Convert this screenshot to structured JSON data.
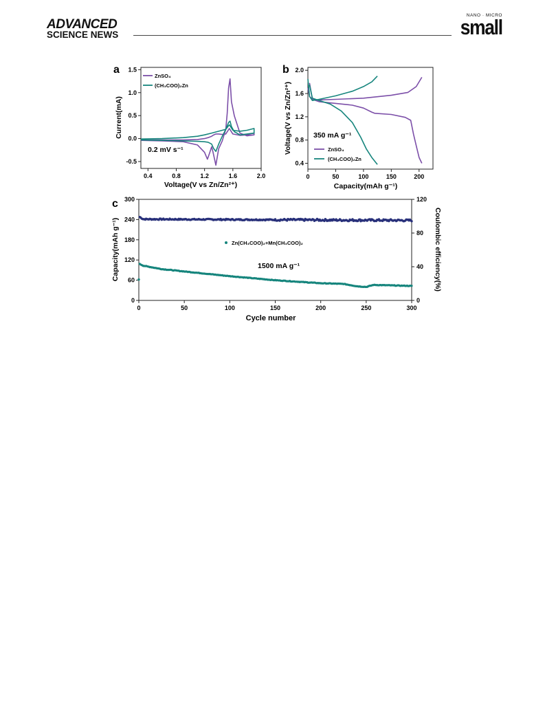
{
  "header": {
    "brand_line1": "ADVANCED",
    "brand_line2": "SCIENCE NEWS",
    "journal_prefix": "NANO · MICRO",
    "journal_name": "small"
  },
  "panel_labels": {
    "a": "a",
    "b": "b",
    "c": "c"
  },
  "colors": {
    "purple": "#7b4ea8",
    "teal": "#16857d",
    "navy": "#28307a"
  },
  "chart_data": [
    {
      "type": "line",
      "panel": "a",
      "xlabel": "Voltage(V vs Zn/Zn²⁺)",
      "ylabel": "Current(mA)",
      "xlim": [
        0.3,
        2.0
      ],
      "ylim": [
        -0.65,
        1.55
      ],
      "xticks": [
        "0.4",
        "0.8",
        "1.2",
        "1.6",
        "2.0"
      ],
      "yticks": [
        "-0.5",
        "0.0",
        "0.5",
        "1.0",
        "1.5"
      ],
      "annotation": "0.2 mV s⁻¹",
      "legend": [
        "ZnSO₄",
        "(CH₃COO)₂Zn"
      ],
      "series": [
        {
          "name": "ZnSO₄",
          "color": "#7b4ea8",
          "x": [
            0.3,
            0.6,
            0.9,
            1.1,
            1.2,
            1.25,
            1.3,
            1.33,
            1.36,
            1.4,
            1.45,
            1.5,
            1.55,
            1.6,
            1.7,
            1.8,
            1.9,
            1.9,
            1.8,
            1.7,
            1.62,
            1.58,
            1.56,
            1.54,
            1.52,
            1.5,
            1.45,
            1.4,
            1.36,
            1.32,
            1.3,
            1.27,
            1.24,
            1.2,
            1.1,
            0.9,
            0.6,
            0.3
          ],
          "y": [
            -0.03,
            -0.03,
            -0.03,
            -0.02,
            0.0,
            0.02,
            0.05,
            0.08,
            0.1,
            0.1,
            0.09,
            0.1,
            0.22,
            0.1,
            0.07,
            0.08,
            0.12,
            0.08,
            0.06,
            0.12,
            0.5,
            0.8,
            1.3,
            1.1,
            0.55,
            0.2,
            -0.05,
            -0.22,
            -0.58,
            -0.3,
            -0.18,
            -0.32,
            -0.45,
            -0.3,
            -0.14,
            -0.07,
            -0.05,
            -0.04
          ]
        },
        {
          "name": "(CH₃COO)₂Zn",
          "color": "#16857d",
          "x": [
            0.3,
            0.6,
            0.9,
            1.1,
            1.2,
            1.3,
            1.4,
            1.45,
            1.5,
            1.55,
            1.6,
            1.7,
            1.8,
            1.9,
            1.9,
            1.8,
            1.7,
            1.62,
            1.58,
            1.56,
            1.54,
            1.5,
            1.45,
            1.4,
            1.36,
            1.33,
            1.3,
            1.25,
            1.2,
            1.1,
            0.9,
            0.6,
            0.3
          ],
          "y": [
            -0.01,
            0.0,
            0.02,
            0.05,
            0.08,
            0.12,
            0.16,
            0.18,
            0.2,
            0.3,
            0.18,
            0.16,
            0.18,
            0.22,
            0.12,
            0.1,
            0.08,
            0.15,
            0.26,
            0.38,
            0.35,
            0.2,
            0.05,
            -0.12,
            -0.28,
            -0.22,
            -0.12,
            -0.08,
            -0.07,
            -0.06,
            -0.05,
            -0.04,
            -0.03
          ]
        }
      ]
    },
    {
      "type": "line",
      "panel": "b",
      "xlabel": "Capacity(mAh g⁻¹)",
      "ylabel": "Voltage(V vs Zn/Zn²⁺)",
      "xlim": [
        0,
        225
      ],
      "ylim": [
        0.3,
        2.05
      ],
      "xticks": [
        "0",
        "50",
        "100",
        "150",
        "200"
      ],
      "yticks": [
        "0.4",
        "0.8",
        "1.2",
        "1.6",
        "2.0"
      ],
      "annotation": "350 mA g⁻¹",
      "legend": [
        "ZnSO₄",
        "(CH₃COO)₂Zn"
      ],
      "series": [
        {
          "name": "ZnSO₄",
          "color": "#7b4ea8",
          "x": [
            0,
            3,
            8,
            20,
            50,
            100,
            150,
            180,
            195,
            205,
            0,
            3,
            8,
            20,
            50,
            80,
            100,
            115,
            120,
            150,
            175,
            185,
            190,
            195,
            200,
            205
          ],
          "y": [
            1.7,
            1.55,
            1.5,
            1.49,
            1.5,
            1.52,
            1.57,
            1.62,
            1.72,
            1.88,
            null,
            1.78,
            1.5,
            1.46,
            1.43,
            1.4,
            1.35,
            1.28,
            1.26,
            1.24,
            1.19,
            1.14,
            0.9,
            0.7,
            0.5,
            0.4
          ]
        },
        {
          "name": "(CH₃COO)₂Zn",
          "color": "#16857d",
          "x": [
            0,
            3,
            8,
            20,
            50,
            80,
            100,
            115,
            125,
            0,
            3,
            8,
            20,
            40,
            60,
            80,
            95,
            105,
            115,
            125
          ],
          "y": [
            1.85,
            1.55,
            1.48,
            1.5,
            1.56,
            1.64,
            1.72,
            1.8,
            1.9,
            null,
            1.75,
            1.52,
            1.48,
            1.42,
            1.3,
            1.1,
            0.85,
            0.65,
            0.5,
            0.38
          ]
        }
      ]
    },
    {
      "type": "scatter",
      "panel": "c",
      "xlabel": "Cycle number",
      "ylabel": "Capacity(mAh g⁻¹)",
      "y2label": "Coulombic efficiency(%)",
      "xlim": [
        0,
        300
      ],
      "ylim": [
        0,
        300
      ],
      "y2lim": [
        0,
        120
      ],
      "xticks": [
        "0",
        "50",
        "100",
        "150",
        "200",
        "250",
        "300"
      ],
      "yticks": [
        "0",
        "60",
        "120",
        "180",
        "240",
        "300"
      ],
      "y2ticks": [
        "0",
        "40",
        "80",
        "120"
      ],
      "annotation": "1500 mA g⁻¹",
      "legend": [
        "Zn(CH₃COO)₂+Mn(CH₃COO)₂"
      ],
      "capacity_color": "#16857d",
      "efficiency_color": "#28307a",
      "capacity_first": 62,
      "capacity_curve": [
        {
          "x": 1,
          "y": 108
        },
        {
          "x": 5,
          "y": 103
        },
        {
          "x": 25,
          "y": 93
        },
        {
          "x": 50,
          "y": 86
        },
        {
          "x": 100,
          "y": 72
        },
        {
          "x": 150,
          "y": 60
        },
        {
          "x": 200,
          "y": 51
        },
        {
          "x": 225,
          "y": 49
        },
        {
          "x": 240,
          "y": 42
        },
        {
          "x": 250,
          "y": 40
        },
        {
          "x": 258,
          "y": 46
        },
        {
          "x": 300,
          "y": 43
        }
      ],
      "efficiency_curve": [
        {
          "x": 1,
          "y": 99
        },
        {
          "x": 5,
          "y": 96.5
        },
        {
          "x": 300,
          "y": 95
        }
      ]
    }
  ]
}
